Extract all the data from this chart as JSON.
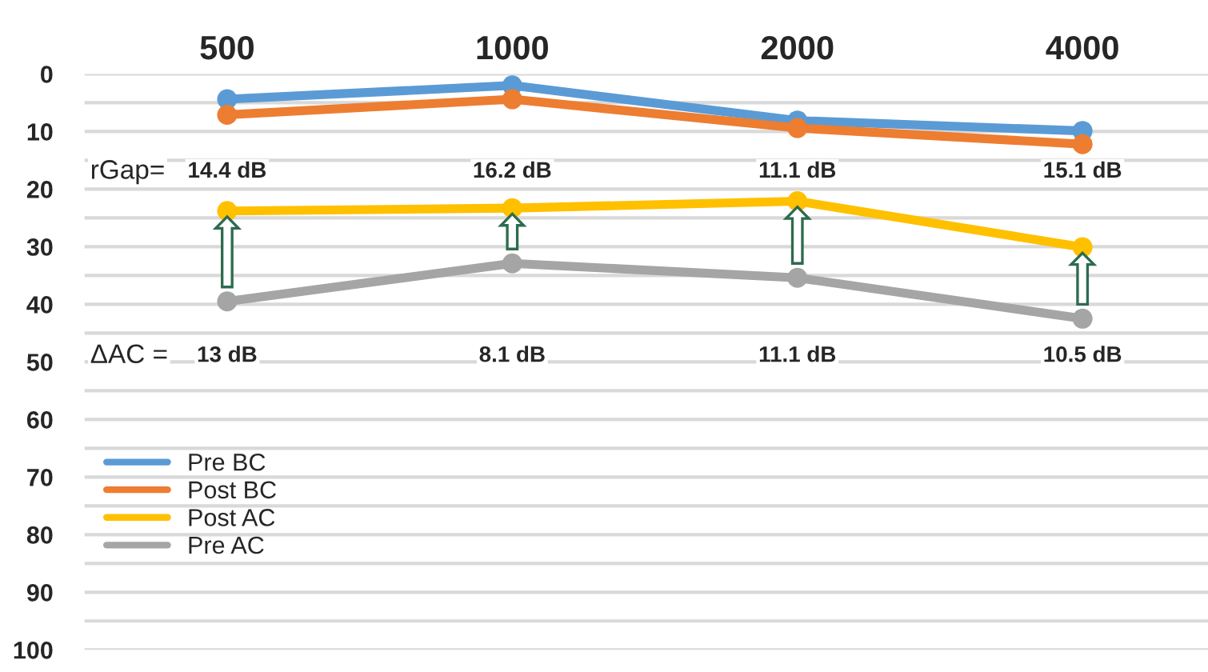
{
  "chart_data": {
    "type": "line",
    "categories": [
      "500",
      "1000",
      "2000",
      "4000"
    ],
    "series": [
      {
        "name": "Pre BC",
        "color": "#5b9bd5",
        "values": [
          4.4,
          2.0,
          8.1,
          9.9
        ]
      },
      {
        "name": "Post BC",
        "color": "#ed7d31",
        "values": [
          7.1,
          4.4,
          9.4,
          12.2
        ]
      },
      {
        "name": "Post AC",
        "color": "#ffc000",
        "values": [
          23.8,
          23.3,
          22.1,
          30.1
        ]
      },
      {
        "name": "Pre AC",
        "color": "#a5a5a5",
        "values": [
          39.5,
          32.9,
          35.4,
          42.5
        ]
      }
    ],
    "ylim": [
      100,
      0
    ],
    "yticks": [
      0,
      {
        "value": 5,
        "label": null
      },
      10,
      {
        "value": 15,
        "label": null
      },
      20,
      {
        "value": 25,
        "label": null
      },
      30,
      {
        "value": 35,
        "label": null
      },
      40,
      {
        "value": 45,
        "label": null
      },
      50,
      {
        "value": 55,
        "label": null
      },
      60,
      {
        "value": 65,
        "label": null
      },
      70,
      {
        "value": 75,
        "label": null
      },
      80,
      {
        "value": 85,
        "label": null
      },
      90,
      {
        "value": 95,
        "label": null
      },
      100
    ],
    "grid": "y",
    "marker": "circle",
    "line_style": "solid",
    "legend": "bottom left",
    "annotations": [
      "rGap=",
      "14.4 dB",
      "16.2 dB",
      "11.1 dB",
      "15.1 dB",
      "ΔAC =",
      "13 dB",
      "8.1 dB",
      "11.1 dB",
      "10.5 dB"
    ]
  }
}
